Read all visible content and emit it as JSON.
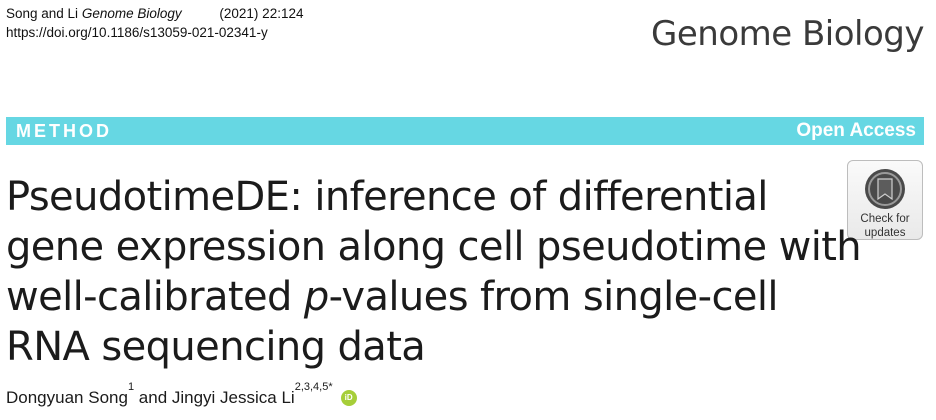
{
  "citation": {
    "authors": "Song and Li",
    "journal": "Genome Biology",
    "year_volume": "(2021) 22:124",
    "doi": "https://doi.org/10.1186/s13059-021-02341-y"
  },
  "journal_brand": "Genome Biology",
  "banner": {
    "type": "METHOD",
    "access": "Open Access"
  },
  "title": {
    "part1": "PseudotimeDE: inference of differential gene expression along cell pseudotime with well-calibrated ",
    "italic": "p",
    "part2": "-values from single-cell RNA sequencing data"
  },
  "authors": {
    "first": "Dongyuan Song",
    "first_affil": "1",
    "connector": " and ",
    "second": "Jingyi Jessica Li",
    "second_affil": "2,3,4,5*",
    "orcid_icon": "orcid-icon",
    "orcid_text": "iD"
  },
  "check_updates": {
    "line1": "Check for",
    "line2": "updates",
    "icon": "check-updates-icon"
  },
  "colors": {
    "banner": "#66d7e3",
    "orcid": "#a6ce39"
  }
}
